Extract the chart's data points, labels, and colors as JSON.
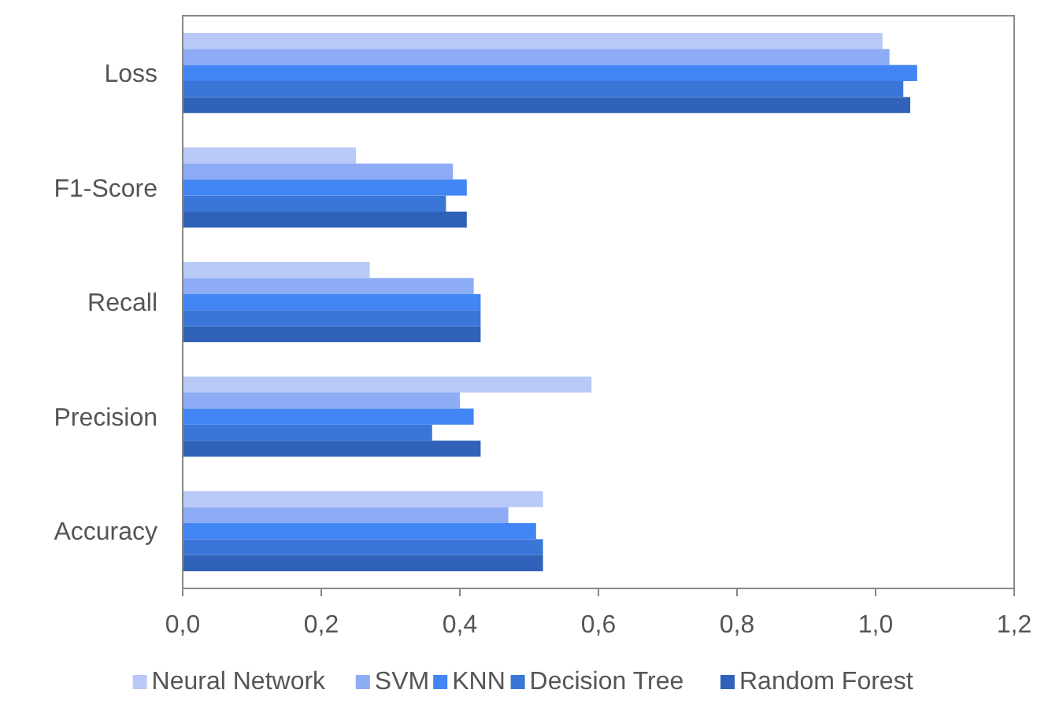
{
  "chart_data": {
    "type": "bar",
    "orientation": "horizontal",
    "categories": [
      "Loss",
      "F1-Score",
      "Recall",
      "Precision",
      "Accuracy"
    ],
    "series": [
      {
        "name": "Neural Network",
        "color": "#b9c9f7",
        "values": [
          1.01,
          0.25,
          0.27,
          0.59,
          0.52
        ]
      },
      {
        "name": "SVM",
        "color": "#8eabf5",
        "values": [
          1.02,
          0.39,
          0.42,
          0.4,
          0.47
        ]
      },
      {
        "name": "KNN",
        "color": "#4285f4",
        "values": [
          1.06,
          0.41,
          0.43,
          0.42,
          0.51
        ]
      },
      {
        "name": "Decision Tree",
        "color": "#3a76d8",
        "values": [
          1.04,
          0.38,
          0.43,
          0.36,
          0.52
        ]
      },
      {
        "name": "Random Forest",
        "color": "#2f62b8",
        "values": [
          1.05,
          0.41,
          0.43,
          0.43,
          0.52
        ]
      }
    ],
    "xlim": [
      0,
      1.2
    ],
    "xticks": [
      {
        "value": 0,
        "label": "0,0"
      },
      {
        "value": 0.2,
        "label": "0,2"
      },
      {
        "value": 0.4,
        "label": "0,4"
      },
      {
        "value": 0.6,
        "label": "0,6"
      },
      {
        "value": 0.8,
        "label": "0,8"
      },
      {
        "value": 1.0,
        "label": "1,0"
      },
      {
        "value": 1.2,
        "label": "1,2"
      }
    ],
    "grid": false,
    "legend": "bottom"
  }
}
